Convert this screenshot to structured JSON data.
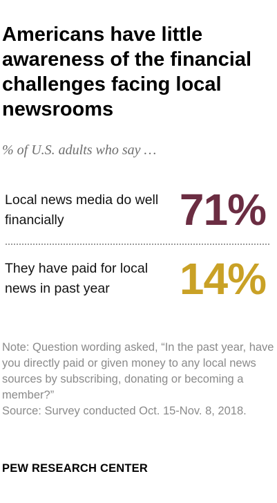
{
  "title": "Americans have little awareness of the financial challenges facing local newsrooms",
  "subtitle": "% of U.S. adults who say …",
  "colors": {
    "accent_primary": "#6b2d42",
    "accent_secondary": "#c9a126",
    "note_text": "#8a8a8a",
    "subtitle_text": "#6e6e6e"
  },
  "chart_data": {
    "type": "table",
    "title": "Americans have little awareness of the financial challenges facing local newsrooms",
    "subtitle": "% of U.S. adults who say …",
    "categories": [
      "Local news media do well financially",
      "They have paid for local news in past year"
    ],
    "values": [
      71,
      14
    ],
    "rows": [
      {
        "label": "Local news media do well financially",
        "value": 71,
        "display": "71%",
        "color": "#6b2d42"
      },
      {
        "label": "They have paid for local news in past year",
        "value": 14,
        "display": "14%",
        "color": "#c9a126"
      }
    ],
    "unit": "%"
  },
  "note": {
    "lines": [
      "Note: Question wording asked, “In the past year, have you directly paid or given money to any local news sources by subscribing, donating or becoming a member?”",
      "Source: Survey conducted Oct. 15-Nov. 8, 2018."
    ]
  },
  "brand": "PEW RESEARCH CENTER"
}
